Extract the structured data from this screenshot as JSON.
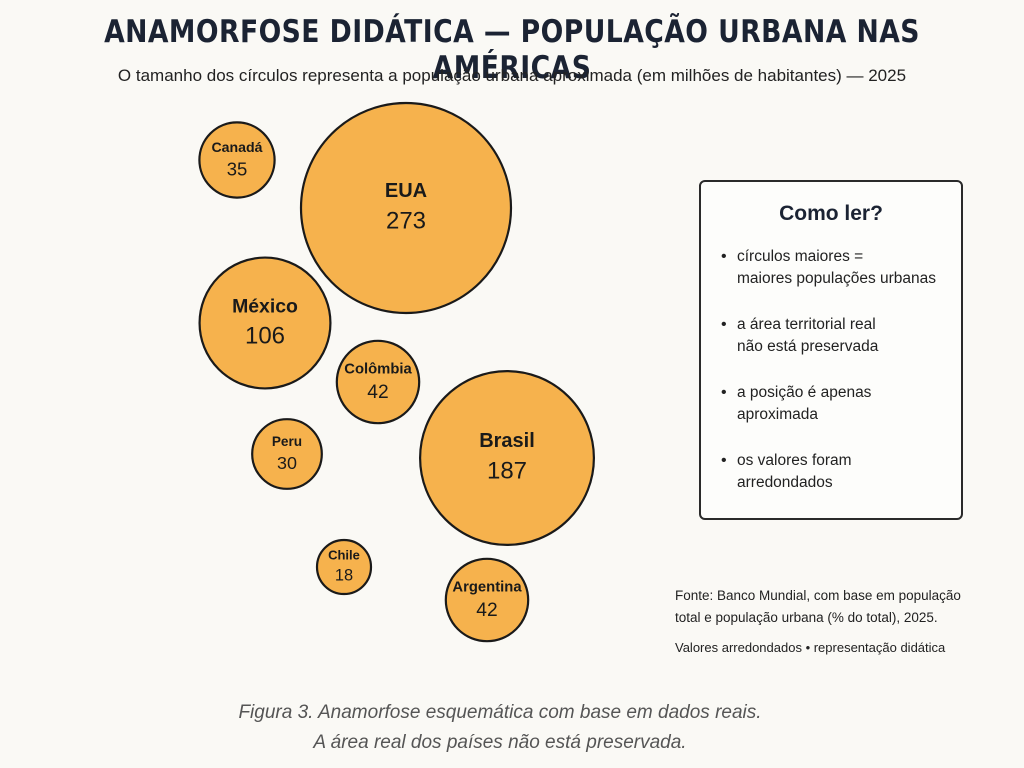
{
  "title": "ANAMORFOSE DIDÁTICA — POPULAÇÃO URBANA NAS AMÉRICAS",
  "subtitle": "O tamanho dos círculos representa a população urbana aproximada (em milhões de habitantes) — 2025",
  "chart_data": {
    "type": "bubble",
    "title": "ANAMORFOSE DIDÁTICA — POPULAÇÃO URBANA NAS AMÉRICAS",
    "value_unit": "milhões de habitantes",
    "year": 2025,
    "colors": {
      "fill": "#f6b24d",
      "stroke": "#1a1a1a",
      "text": "#1a1a1a"
    },
    "categories": [
      "Canadá",
      "EUA",
      "México",
      "Colômbia",
      "Peru",
      "Brasil",
      "Chile",
      "Argentina"
    ],
    "values": [
      35,
      273,
      106,
      42,
      30,
      187,
      18,
      42
    ],
    "value_labels": [
      "35",
      "273",
      "106",
      "42",
      "30",
      "187",
      "18",
      "42"
    ]
  },
  "legend": {
    "title": "Como ler?",
    "items": [
      "círculos maiores =\nmaiores populações urbanas",
      "a área territorial real\nnão está preservada",
      "a posição é apenas\naproximada",
      "os valores foram\narredondados"
    ]
  },
  "source": "Fonte: Banco Mundial, com base em população total e população urbana (% do total), 2025.",
  "note": "Valores arredondados • representação didática",
  "caption": {
    "line1": "Figura 3. Anamorfose esquemática com base em dados reais.",
    "line2": "A área real dos países não está preservada."
  }
}
